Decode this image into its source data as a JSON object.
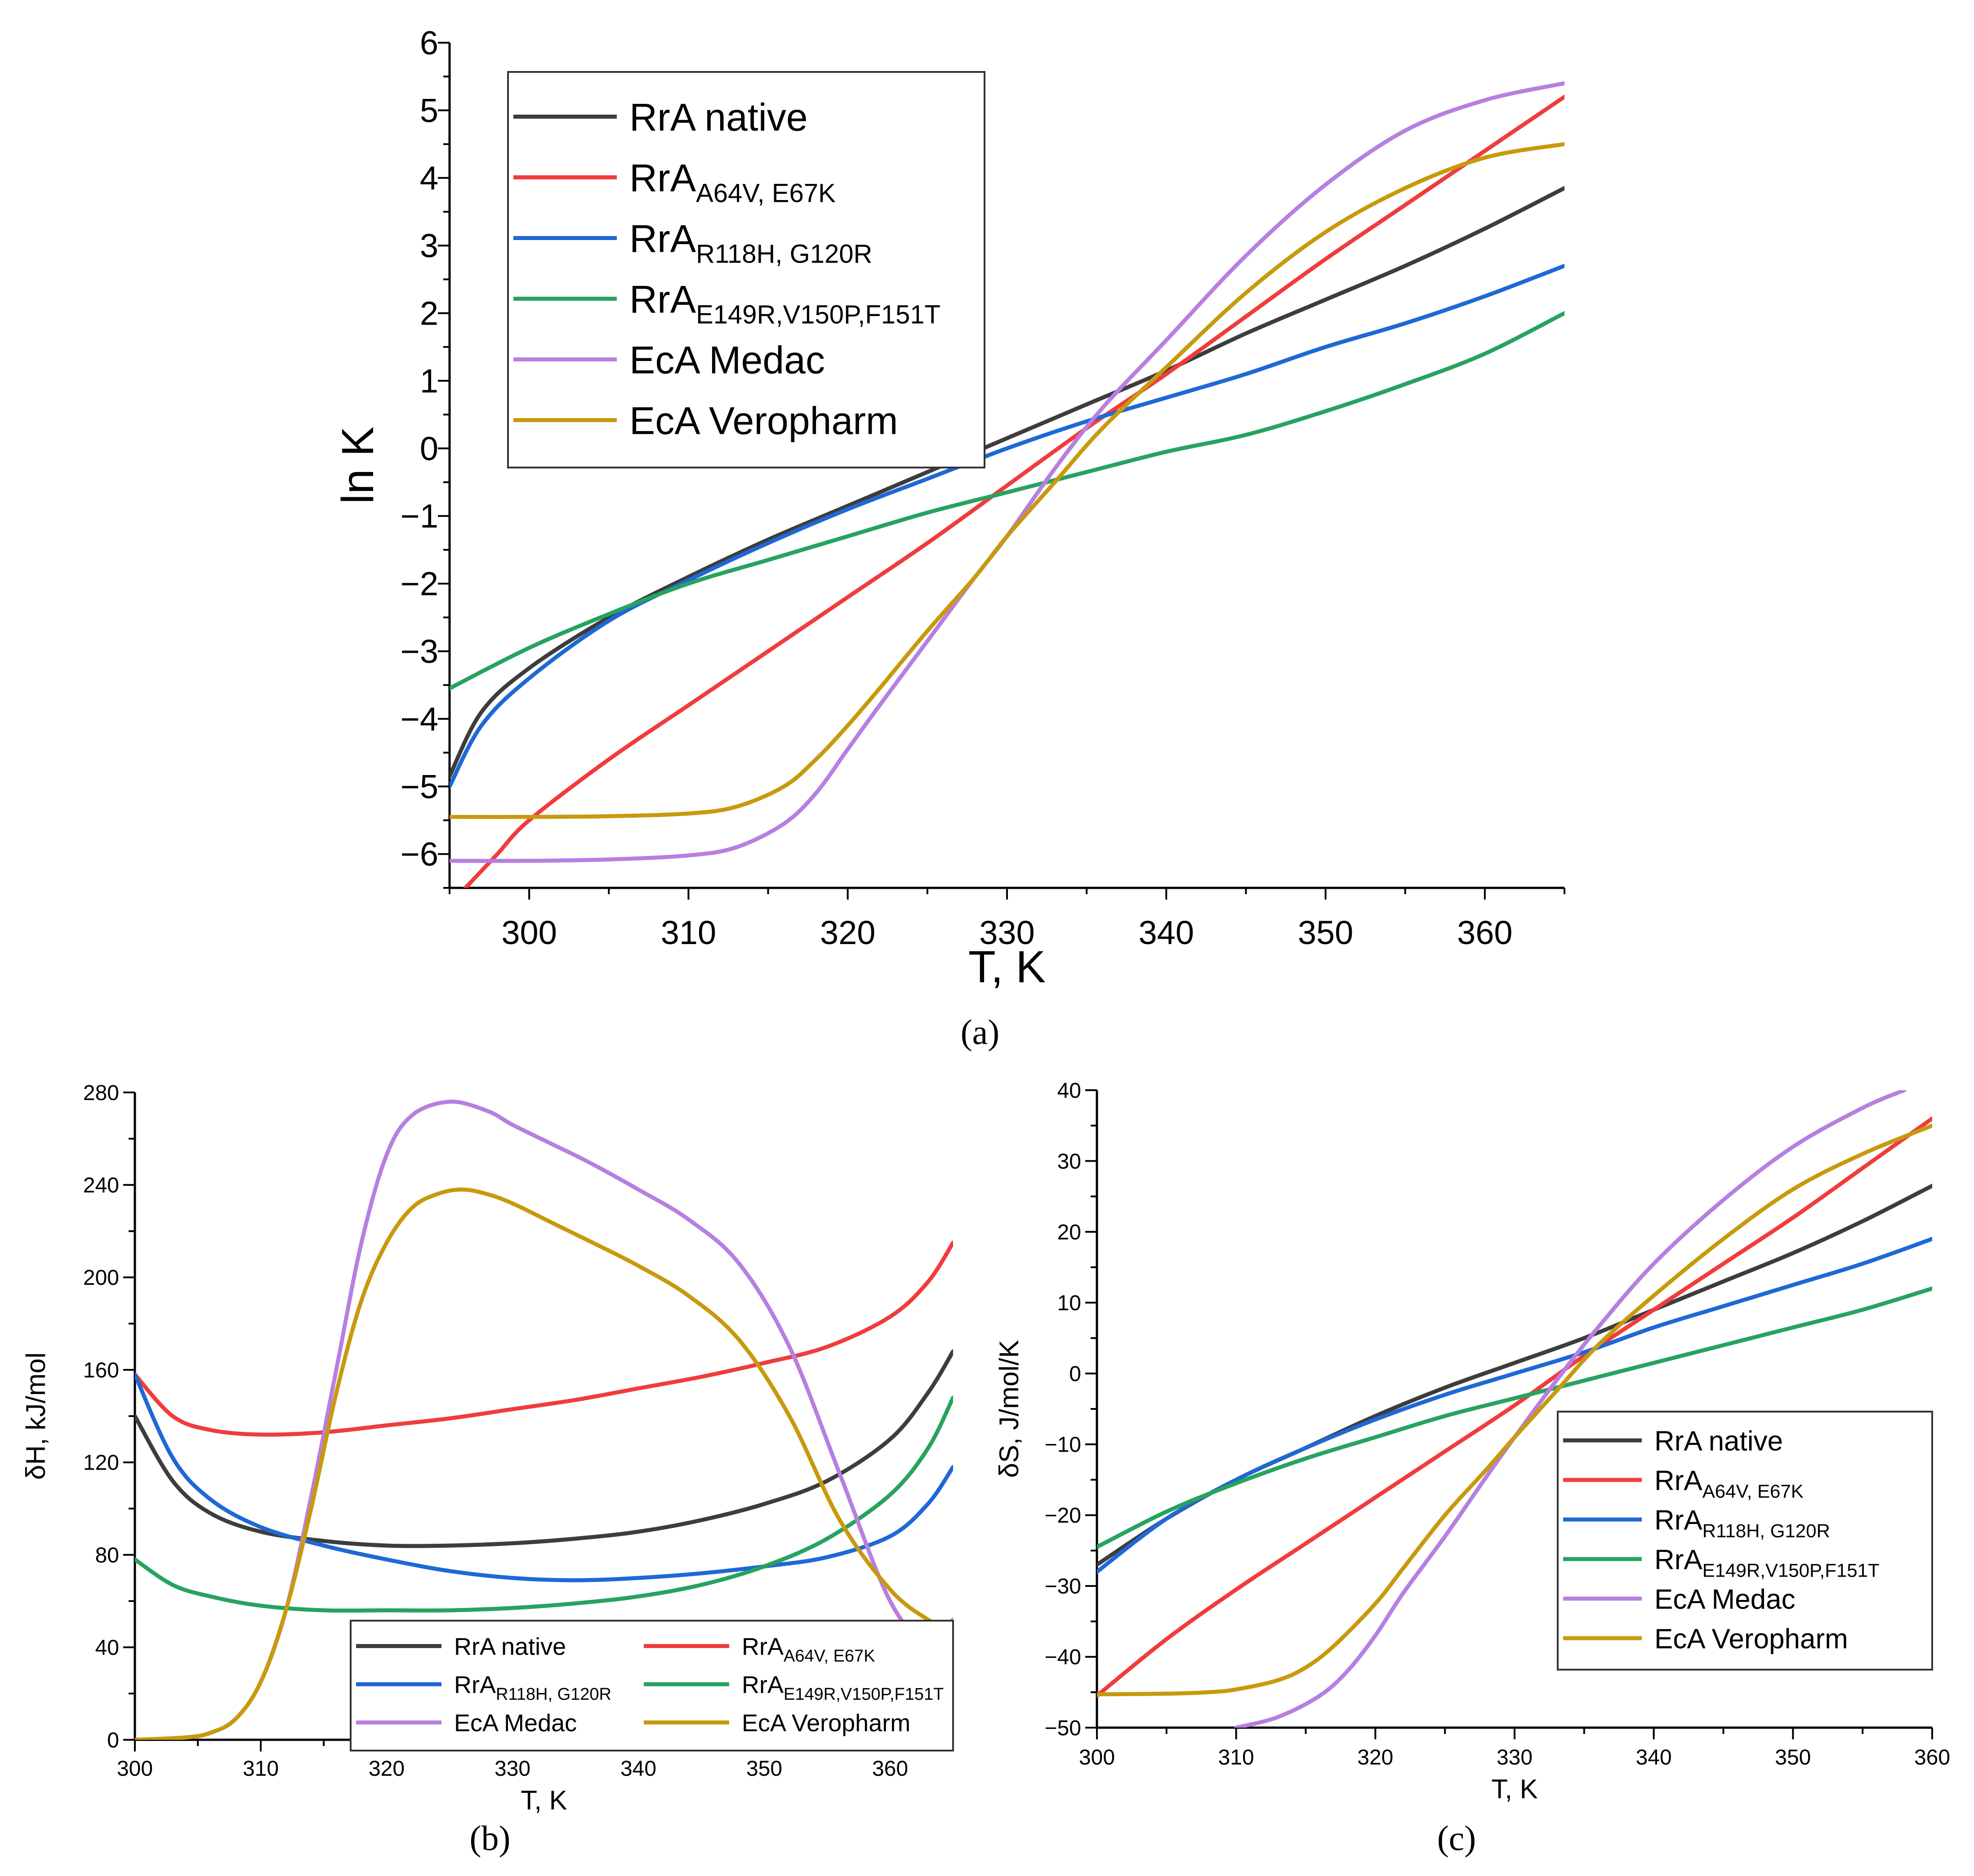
{
  "figure": {
    "colors": {
      "rra_native": "#3d3d3d",
      "rra_a64v": "#f03c3c",
      "rra_r118h": "#1f68d6",
      "rra_e149r": "#27a35f",
      "eca_medac": "#b77fe0",
      "eca_veropharm": "#c79a0e"
    }
  },
  "chart_data": [
    {
      "id": "a",
      "type": "line",
      "caption": "(a)",
      "xlabel": "T, K",
      "ylabel": "ln K",
      "xlim": [
        295,
        365
      ],
      "ylim": [
        -6.5,
        6
      ],
      "xticks": [
        "300",
        "310",
        "320",
        "330",
        "340",
        "350",
        "360"
      ],
      "yticks": [
        "−6",
        "−5",
        "−4",
        "−3",
        "−2",
        "−1",
        "0",
        "1",
        "2",
        "3",
        "4",
        "5",
        "6"
      ],
      "legend_position": "top-left",
      "series": [
        {
          "key": "rra_native",
          "name": "RrA native",
          "sub": "",
          "x": [
            295,
            297,
            300,
            305,
            310,
            315,
            320,
            325,
            330,
            335,
            340,
            345,
            350,
            355,
            360,
            365
          ],
          "y": [
            -4.85,
            -3.9,
            -3.25,
            -2.5,
            -1.9,
            -1.35,
            -0.85,
            -0.35,
            0.15,
            0.65,
            1.15,
            1.7,
            2.2,
            2.7,
            3.25,
            3.85
          ]
        },
        {
          "key": "rra_a64v",
          "name": "RrA",
          "sub": "A64V, E67K",
          "x": [
            296,
            298,
            300,
            305,
            310,
            315,
            320,
            325,
            330,
            335,
            340,
            345,
            350,
            355,
            360,
            365
          ],
          "y": [
            -6.5,
            -6.0,
            -5.5,
            -4.6,
            -3.8,
            -3.0,
            -2.2,
            -1.4,
            -0.55,
            0.3,
            1.1,
            1.95,
            2.8,
            3.6,
            4.4,
            5.2
          ]
        },
        {
          "key": "rra_r118h",
          "name": "RrA",
          "sub": "R118H, G120R",
          "x": [
            295,
            297,
            300,
            305,
            310,
            315,
            320,
            325,
            330,
            335,
            340,
            345,
            350,
            355,
            360,
            365
          ],
          "y": [
            -5.0,
            -4.1,
            -3.4,
            -2.55,
            -1.95,
            -1.4,
            -0.9,
            -0.45,
            0.0,
            0.4,
            0.75,
            1.1,
            1.5,
            1.85,
            2.25,
            2.7
          ]
        },
        {
          "key": "rra_e149r",
          "name": "RrA",
          "sub": "E149R,V150P,F151T",
          "x": [
            295,
            300,
            305,
            310,
            315,
            320,
            325,
            330,
            335,
            340,
            345,
            350,
            355,
            360,
            365
          ],
          "y": [
            -3.55,
            -2.95,
            -2.45,
            -2.0,
            -1.65,
            -1.3,
            -0.95,
            -0.65,
            -0.35,
            -0.05,
            0.2,
            0.55,
            0.95,
            1.4,
            2.0
          ]
        },
        {
          "key": "eca_medac",
          "name": "EcA Medac",
          "sub": "",
          "x": [
            295,
            300,
            305,
            310,
            313,
            316,
            318,
            320,
            322,
            325,
            328,
            330,
            333,
            336,
            340,
            345,
            350,
            355,
            360,
            365
          ],
          "y": [
            -6.1,
            -6.1,
            -6.08,
            -6.02,
            -5.9,
            -5.55,
            -5.1,
            -4.45,
            -3.8,
            -2.85,
            -1.9,
            -1.3,
            -0.3,
            0.6,
            1.6,
            2.85,
            3.9,
            4.7,
            5.15,
            5.4
          ]
        },
        {
          "key": "eca_veropharm",
          "name": "EcA Veropharm",
          "sub": "",
          "x": [
            295,
            300,
            305,
            310,
            313,
            316,
            318,
            320,
            322,
            325,
            328,
            330,
            333,
            336,
            340,
            345,
            350,
            355,
            360,
            365
          ],
          "y": [
            -5.45,
            -5.45,
            -5.44,
            -5.4,
            -5.3,
            -5.0,
            -4.6,
            -4.1,
            -3.55,
            -2.7,
            -1.9,
            -1.3,
            -0.5,
            0.3,
            1.2,
            2.3,
            3.2,
            3.85,
            4.3,
            4.5
          ]
        }
      ]
    },
    {
      "id": "b",
      "type": "line",
      "caption": "(b)",
      "xlabel": "T, K",
      "ylabel": "δH, kJ/mol",
      "xlim": [
        300,
        365
      ],
      "ylim": [
        0,
        280
      ],
      "xticks": [
        "300",
        "310",
        "320",
        "330",
        "340",
        "350",
        "360"
      ],
      "yticks": [
        "0",
        "40",
        "80",
        "120",
        "160",
        "200",
        "240",
        "280"
      ],
      "legend_position": "bottom-center",
      "series": [
        {
          "key": "rra_native",
          "name": "RrA native",
          "sub": "",
          "x": [
            300,
            303,
            306,
            310,
            315,
            320,
            325,
            330,
            335,
            340,
            345,
            350,
            355,
            360,
            363,
            365
          ],
          "y": [
            140,
            112,
            98,
            90,
            86,
            84,
            84,
            85,
            87,
            90,
            95,
            102,
            112,
            130,
            150,
            168
          ]
        },
        {
          "key": "rra_a64v",
          "name": "RrA",
          "sub": "A64V, E67K",
          "x": [
            300,
            303,
            306,
            310,
            315,
            320,
            325,
            330,
            335,
            340,
            345,
            350,
            355,
            360,
            363,
            365
          ],
          "y": [
            158,
            140,
            134,
            132,
            133,
            136,
            139,
            143,
            147,
            152,
            157,
            163,
            170,
            183,
            198,
            215
          ]
        },
        {
          "key": "rra_r118h",
          "name": "RrA",
          "sub": "R118H, G120R",
          "x": [
            300,
            303,
            306,
            310,
            315,
            320,
            325,
            330,
            335,
            340,
            345,
            350,
            355,
            360,
            363,
            365
          ],
          "y": [
            158,
            122,
            104,
            92,
            84,
            78,
            73,
            70,
            69,
            70,
            72,
            75,
            79,
            88,
            102,
            118
          ]
        },
        {
          "key": "rra_e149r",
          "name": "RrA",
          "sub": "E149R,V150P,F151T",
          "x": [
            300,
            303,
            306,
            310,
            315,
            320,
            325,
            330,
            335,
            340,
            345,
            350,
            355,
            360,
            363,
            365
          ],
          "y": [
            78,
            67,
            62,
            58,
            56,
            56,
            56,
            57,
            59,
            62,
            67,
            75,
            87,
            106,
            126,
            148
          ]
        },
        {
          "key": "eca_medac",
          "name": "EcA Medac",
          "sub": "",
          "x": [
            300,
            304,
            306,
            308,
            310,
            312,
            314,
            316,
            318,
            320,
            322,
            325,
            328,
            330,
            333,
            336,
            340,
            344,
            348,
            352,
            356,
            360,
            363,
            365
          ],
          "y": [
            0,
            1,
            3,
            9,
            25,
            56,
            105,
            160,
            215,
            253,
            270,
            276,
            272,
            266,
            258,
            250,
            238,
            225,
            206,
            170,
            115,
            60,
            42,
            52
          ]
        },
        {
          "key": "eca_veropharm",
          "name": "EcA Veropharm",
          "sub": "",
          "x": [
            300,
            304,
            306,
            308,
            310,
            312,
            314,
            316,
            318,
            320,
            322,
            324,
            326,
            328,
            330,
            333,
            336,
            340,
            344,
            348,
            352,
            356,
            360,
            363,
            365
          ],
          "y": [
            0,
            1,
            3,
            9,
            25,
            56,
            100,
            150,
            190,
            215,
            230,
            236,
            238,
            236,
            232,
            224,
            216,
            205,
            192,
            173,
            140,
            95,
            65,
            52,
            47
          ]
        }
      ]
    },
    {
      "id": "c",
      "type": "line",
      "caption": "(c)",
      "xlabel": "T, K",
      "ylabel": "δS, J/mol/K",
      "xlim": [
        300,
        360
      ],
      "ylim": [
        -50,
        40
      ],
      "xticks": [
        "300",
        "310",
        "320",
        "330",
        "340",
        "350",
        "360"
      ],
      "yticks": [
        "−50",
        "−40",
        "−30",
        "−20",
        "−10",
        "0",
        "10",
        "20",
        "30",
        "40"
      ],
      "legend_position": "bottom-right",
      "series": [
        {
          "key": "rra_native",
          "name": "RrA native",
          "sub": "",
          "x": [
            300,
            305,
            310,
            315,
            320,
            325,
            330,
            335,
            340,
            345,
            350,
            355,
            360
          ],
          "y": [
            -27,
            -20.5,
            -15,
            -10.5,
            -6,
            -2,
            1.5,
            5,
            9,
            13,
            17,
            21.5,
            26.5
          ]
        },
        {
          "key": "rra_a64v",
          "name": "RrA",
          "sub": "A64V, E67K",
          "x": [
            300,
            305,
            310,
            315,
            320,
            325,
            330,
            335,
            340,
            345,
            350,
            355,
            360
          ],
          "y": [
            -45.5,
            -37.5,
            -30.5,
            -24,
            -17.5,
            -11,
            -4.5,
            2.5,
            9,
            15.5,
            22,
            29,
            36
          ]
        },
        {
          "key": "rra_r118h",
          "name": "RrA",
          "sub": "R118H, G120R",
          "x": [
            300,
            305,
            310,
            315,
            320,
            325,
            330,
            335,
            340,
            345,
            350,
            355,
            360
          ],
          "y": [
            -28,
            -20.5,
            -15,
            -10.5,
            -6.5,
            -3,
            0,
            3,
            6.5,
            9.5,
            12.5,
            15.5,
            19
          ]
        },
        {
          "key": "rra_e149r",
          "name": "RrA",
          "sub": "E149R,V150P,F151T",
          "x": [
            300,
            305,
            310,
            315,
            320,
            325,
            330,
            335,
            340,
            345,
            350,
            355,
            360
          ],
          "y": [
            -24.5,
            -19.5,
            -15.5,
            -12,
            -9,
            -6,
            -3.5,
            -1,
            1.5,
            4,
            6.5,
            9,
            12
          ]
        },
        {
          "key": "eca_medac",
          "name": "EcA Medac",
          "sub": "",
          "x": [
            310,
            313,
            316,
            318,
            320,
            322,
            325,
            328,
            330,
            333,
            336,
            340,
            345,
            350,
            355,
            358
          ],
          "y": [
            -50,
            -48.5,
            -45.5,
            -42,
            -37,
            -31,
            -23,
            -14.5,
            -9,
            -1,
            6.5,
            15.5,
            24.5,
            32,
            37.5,
            40
          ]
        },
        {
          "key": "eca_veropharm",
          "name": "EcA Veropharm",
          "sub": "",
          "x": [
            300,
            305,
            308,
            310,
            313,
            315,
            317,
            320,
            322,
            325,
            328,
            330,
            333,
            336,
            340,
            345,
            350,
            355,
            360
          ],
          "y": [
            -45.3,
            -45.2,
            -45,
            -44.6,
            -43.3,
            -41.5,
            -38.5,
            -32.5,
            -27.5,
            -20,
            -13.5,
            -9,
            -2.5,
            4,
            11,
            19,
            26,
            31,
            35
          ]
        }
      ]
    }
  ]
}
